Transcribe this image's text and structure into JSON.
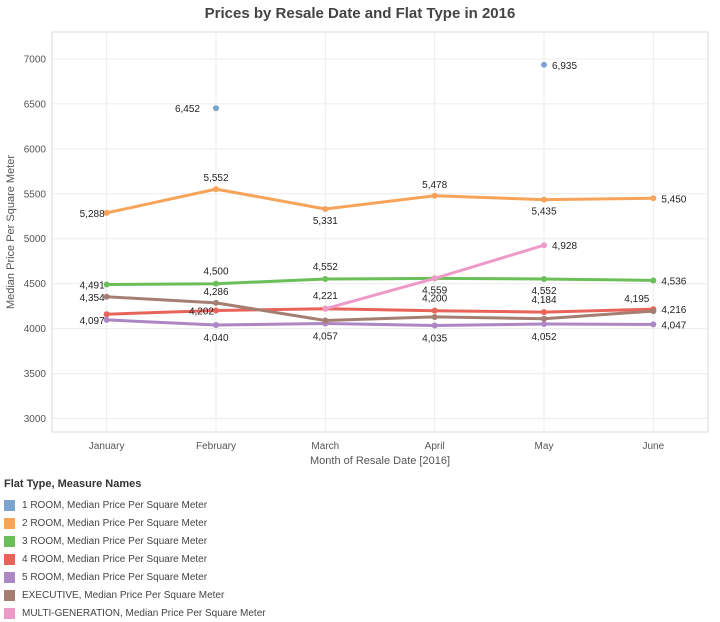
{
  "chart_data": {
    "type": "line",
    "title": "Prices by Resale Date and Flat Type in 2016",
    "xlabel": "Month of Resale Date [2016]",
    "ylabel": "Median Price Per Square Meter",
    "categories": [
      "January",
      "February",
      "March",
      "April",
      "May",
      "June"
    ],
    "ylim": [
      2850,
      7300
    ],
    "yticks": [
      3000,
      3500,
      4000,
      4500,
      5000,
      5500,
      6000,
      6500,
      7000
    ],
    "grid": true,
    "legend_title": "Flat Type, Measure Names",
    "legend_position": "bottom-left",
    "series": [
      {
        "name": "1 ROOM, Median Price Per Square Meter",
        "color": "#7aa3cd",
        "values": [
          null,
          6452,
          null,
          null,
          6935,
          null
        ],
        "labels": [
          null,
          "6,452",
          null,
          null,
          "6,935",
          null
        ]
      },
      {
        "name": "2 ROOM, Median Price Per Square Meter",
        "color": "#f8a35a",
        "values": [
          5288,
          5552,
          5331,
          5478,
          5435,
          5450
        ],
        "labels": [
          "5,288",
          "5,552",
          "5,331",
          "5,478",
          "5,435",
          "5,450"
        ]
      },
      {
        "name": "3 ROOM, Median Price Per Square Meter",
        "color": "#6bbf58",
        "values": [
          4491,
          4500,
          4552,
          4559,
          4552,
          4536
        ],
        "labels": [
          "4,491",
          "4,500",
          "4,552",
          "4,559",
          "4,552",
          "4,536"
        ]
      },
      {
        "name": "4 ROOM, Median Price Per Square Meter",
        "color": "#e8645a",
        "values": [
          4160,
          4202,
          4221,
          4200,
          4184,
          4216
        ],
        "labels": [
          null,
          "4,202",
          "4,221",
          "4,200",
          "4,184",
          "4,216"
        ]
      },
      {
        "name": "5 ROOM, Median Price Per Square Meter",
        "color": "#ad86c4",
        "values": [
          4097,
          4040,
          4057,
          4035,
          4052,
          4047
        ],
        "labels": [
          "4,097",
          "4,040",
          "4,057",
          "4,035",
          "4,052",
          "4,047"
        ]
      },
      {
        "name": "EXECUTIVE, Median Price Per Square Meter",
        "color": "#a57e72",
        "values": [
          4354,
          4286,
          4090,
          4130,
          4110,
          4195
        ],
        "labels": [
          "4,354",
          "4,286",
          null,
          null,
          null,
          "4,195"
        ]
      },
      {
        "name": "MULTI-GENERATION, Median Price Per Square Meter",
        "color": "#ee9ac9",
        "values": [
          null,
          null,
          4221,
          4559,
          4928,
          null
        ],
        "labels": [
          null,
          null,
          null,
          null,
          "4,928",
          null
        ]
      }
    ]
  }
}
